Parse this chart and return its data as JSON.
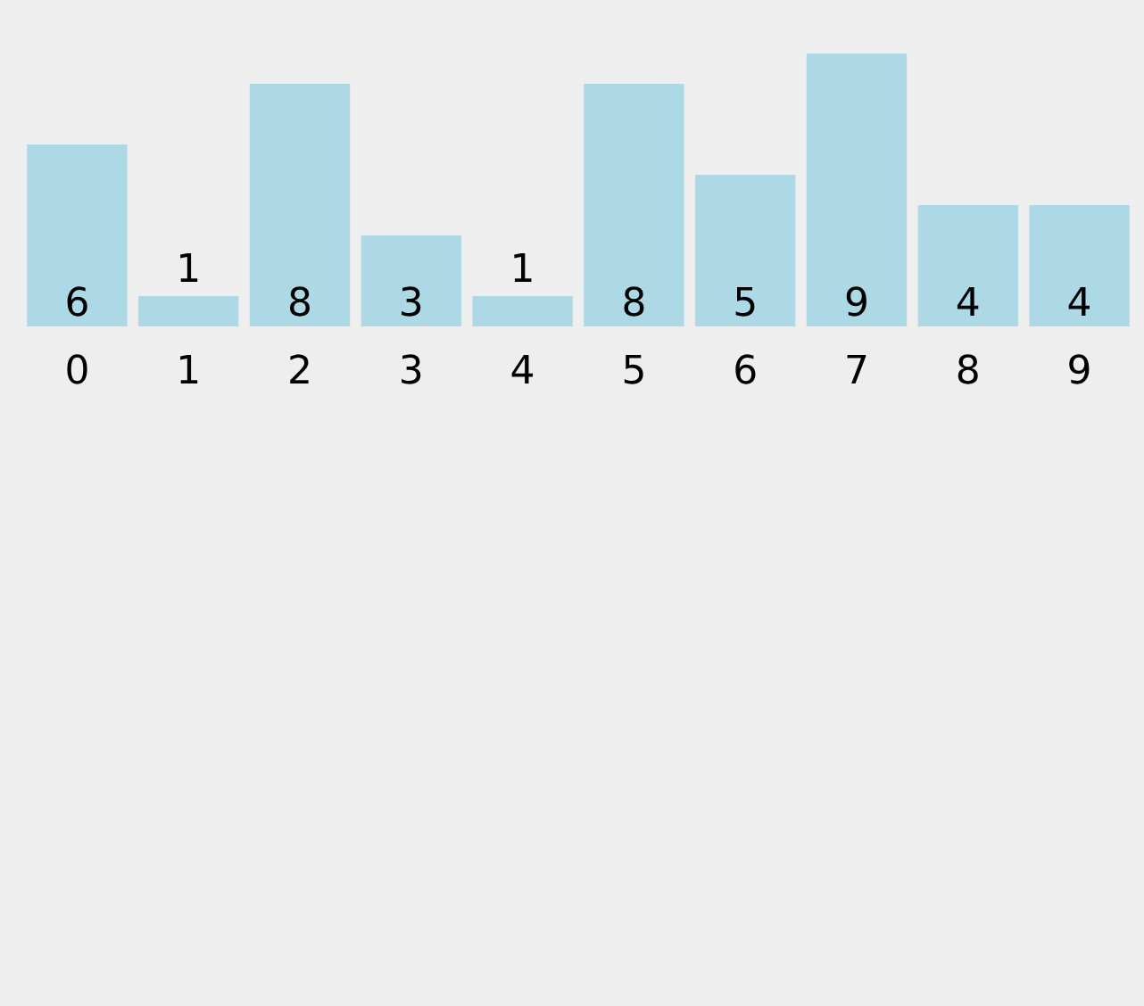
{
  "chart_data": {
    "type": "bar",
    "categories": [
      "0",
      "1",
      "2",
      "3",
      "4",
      "5",
      "6",
      "7",
      "8",
      "9"
    ],
    "values": [
      6,
      1,
      8,
      3,
      1,
      8,
      5,
      9,
      4,
      4
    ],
    "color": "#add8e6",
    "data_labels": true
  }
}
